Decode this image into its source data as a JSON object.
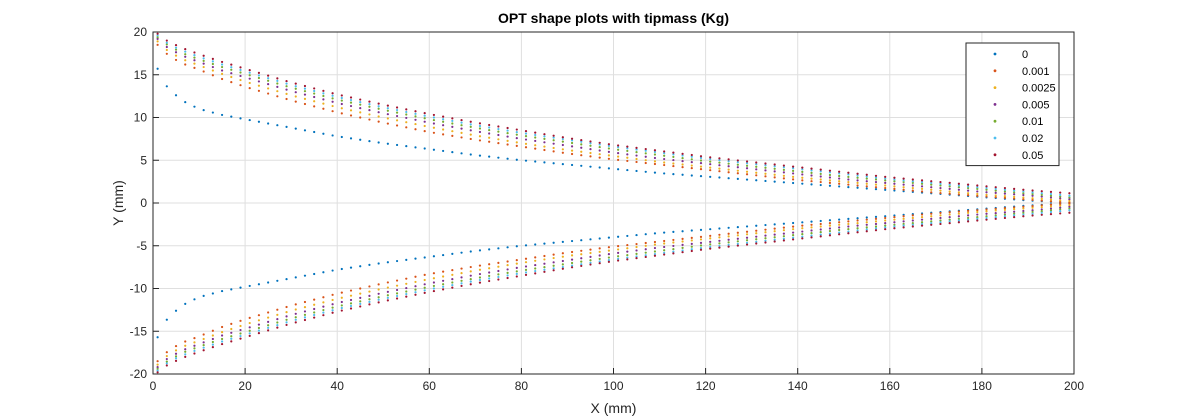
{
  "chart_data": {
    "type": "scatter",
    "title": "OPT shape plots with tipmass (Kg)",
    "xlabel": "X (mm)",
    "ylabel": "Y (mm)",
    "xlim": [
      0,
      200
    ],
    "ylim": [
      -20,
      20
    ],
    "xticks": [
      0,
      20,
      40,
      60,
      80,
      100,
      120,
      140,
      160,
      180,
      200
    ],
    "yticks": [
      -20,
      -15,
      -10,
      -5,
      0,
      5,
      10,
      15,
      20
    ],
    "grid": true,
    "legend_position": "top-right",
    "series": [
      {
        "name": "0",
        "color": "#0072BD",
        "x": [
          1,
          2,
          4,
          7,
          10,
          15,
          20,
          30,
          40,
          50,
          60,
          70,
          80,
          90,
          100,
          110,
          120,
          130,
          140,
          150,
          160,
          170,
          180,
          190,
          200
        ],
        "upper": [
          15.7,
          14.3,
          13.0,
          11.8,
          11.0,
          10.3,
          9.8,
          8.8,
          7.8,
          7.0,
          6.3,
          5.6,
          5.0,
          4.5,
          4.0,
          3.5,
          3.1,
          2.7,
          2.3,
          1.9,
          1.5,
          1.1,
          0.7,
          0.3,
          0.0
        ]
      },
      {
        "name": "0.001",
        "color": "#D95319",
        "x": [
          1,
          2,
          4,
          7,
          10,
          15,
          20,
          30,
          40,
          50,
          60,
          70,
          80,
          90,
          100,
          110,
          120,
          130,
          140,
          150,
          160,
          170,
          180,
          190,
          200
        ],
        "upper": [
          18.5,
          17.9,
          17.0,
          16.2,
          15.6,
          14.5,
          13.6,
          12.0,
          10.6,
          9.4,
          8.3,
          7.4,
          6.6,
          5.8,
          5.1,
          4.5,
          3.9,
          3.3,
          2.7,
          2.2,
          1.7,
          1.2,
          0.8,
          0.4,
          0.0
        ]
      },
      {
        "name": "0.0025",
        "color": "#EDB120",
        "x": [
          1,
          2,
          4,
          7,
          10,
          15,
          20,
          30,
          40,
          50,
          60,
          70,
          80,
          90,
          100,
          110,
          120,
          130,
          140,
          150,
          160,
          170,
          180,
          190,
          200
        ],
        "upper": [
          18.9,
          18.3,
          17.5,
          16.7,
          16.1,
          15.1,
          14.2,
          12.6,
          11.2,
          10.0,
          8.9,
          7.9,
          7.0,
          6.2,
          5.5,
          4.8,
          4.2,
          3.6,
          3.0,
          2.5,
          2.0,
          1.5,
          1.0,
          0.6,
          0.2
        ]
      },
      {
        "name": "0.005",
        "color": "#7E2F8E",
        "x": [
          1,
          2,
          4,
          7,
          10,
          15,
          20,
          30,
          40,
          50,
          60,
          70,
          80,
          90,
          100,
          110,
          120,
          130,
          140,
          150,
          160,
          170,
          180,
          190,
          200
        ],
        "upper": [
          19.2,
          18.6,
          17.9,
          17.1,
          16.5,
          15.5,
          14.7,
          13.1,
          11.7,
          10.5,
          9.4,
          8.4,
          7.5,
          6.7,
          5.9,
          5.2,
          4.6,
          4.0,
          3.4,
          2.8,
          2.3,
          1.8,
          1.3,
          0.9,
          0.4
        ]
      },
      {
        "name": "0.01",
        "color": "#77AC30",
        "x": [
          1,
          2,
          4,
          7,
          10,
          15,
          20,
          30,
          40,
          50,
          60,
          70,
          80,
          90,
          100,
          110,
          120,
          130,
          140,
          150,
          160,
          170,
          180,
          190,
          200
        ],
        "upper": [
          19.4,
          18.9,
          18.2,
          17.4,
          16.8,
          15.9,
          15.1,
          13.5,
          12.1,
          10.9,
          9.8,
          8.8,
          7.9,
          7.1,
          6.3,
          5.6,
          4.9,
          4.3,
          3.7,
          3.1,
          2.6,
          2.1,
          1.6,
          1.1,
          0.6
        ]
      },
      {
        "name": "0.02",
        "color": "#4DBEEE",
        "x": [
          1,
          2,
          4,
          7,
          10,
          15,
          20,
          30,
          40,
          50,
          60,
          70,
          80,
          90,
          100,
          110,
          120,
          130,
          140,
          150,
          160,
          170,
          180,
          190,
          200
        ],
        "upper": [
          19.6,
          19.1,
          18.4,
          17.7,
          17.1,
          16.2,
          15.4,
          13.8,
          12.4,
          11.2,
          10.1,
          9.1,
          8.2,
          7.4,
          6.6,
          5.9,
          5.2,
          4.6,
          4.0,
          3.4,
          2.8,
          2.3,
          1.8,
          1.3,
          0.8
        ]
      },
      {
        "name": "0.05",
        "color": "#A2142F",
        "x": [
          1,
          2,
          4,
          7,
          10,
          15,
          20,
          30,
          40,
          50,
          60,
          70,
          80,
          90,
          100,
          110,
          120,
          130,
          140,
          150,
          160,
          170,
          180,
          190,
          200
        ],
        "upper": [
          19.8,
          19.3,
          18.7,
          18.0,
          17.4,
          16.5,
          15.7,
          14.1,
          12.7,
          11.5,
          10.4,
          9.4,
          8.5,
          7.6,
          6.8,
          6.1,
          5.4,
          4.8,
          4.2,
          3.6,
          3.0,
          2.5,
          2.0,
          1.5,
          1.1
        ]
      }
    ]
  }
}
